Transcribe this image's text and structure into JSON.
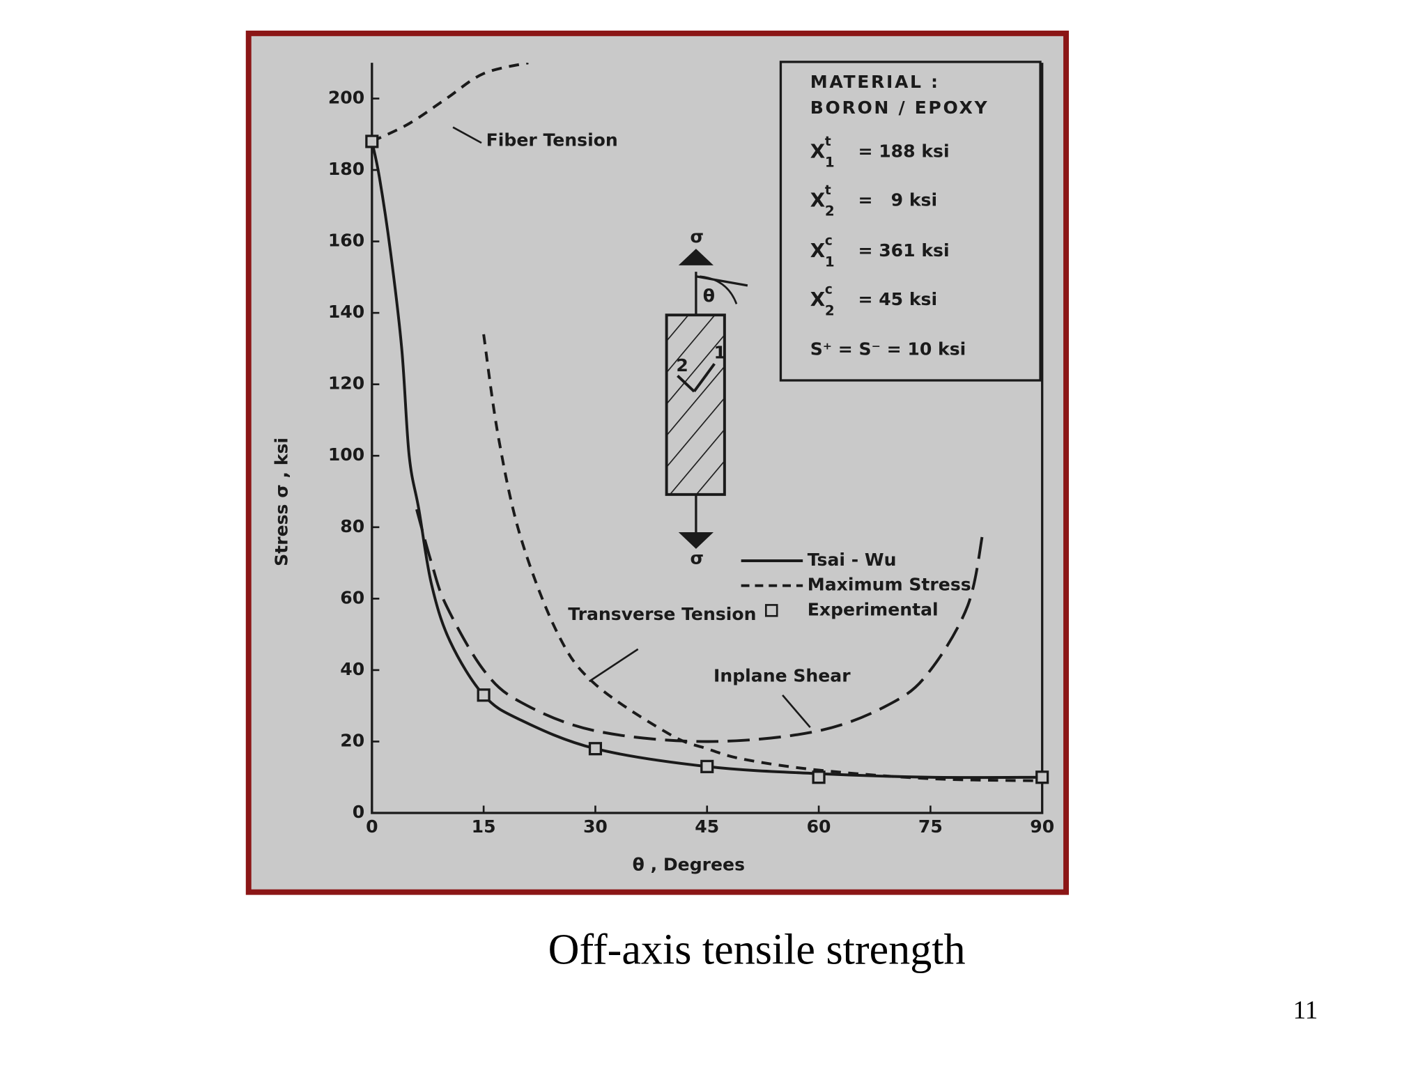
{
  "slide": {
    "title": "Off-axis tensile strength",
    "page_number": "11"
  },
  "chart_data": {
    "type": "line",
    "x_label": "θ , Degrees",
    "y_label": "Stress σ , ksi",
    "xlim": [
      0,
      90
    ],
    "xticks": [
      0,
      15,
      30,
      45,
      60,
      75,
      90
    ],
    "ylim": [
      0,
      210
    ],
    "yticks": [
      0,
      20,
      40,
      60,
      80,
      100,
      120,
      140,
      160,
      180,
      200
    ],
    "grid": false,
    "series": [
      {
        "legend_entry": 0,
        "style": "solid",
        "color": "#1a1a1a",
        "x": [
          0,
          1,
          2.5,
          4,
          5,
          6.3,
          8,
          10.5,
          15,
          20,
          30,
          45,
          60,
          75,
          90
        ],
        "values": [
          188,
          178,
          157,
          130,
          100,
          85,
          64,
          48,
          33,
          26,
          18,
          13,
          11,
          10,
          10
        ]
      },
      {
        "name": "Fiber Tension",
        "legend_entry": 1,
        "style": "dashed",
        "color": "#1a1a1a",
        "x": [
          0,
          5,
          10,
          15,
          21
        ],
        "values": [
          188,
          193,
          200,
          207,
          210
        ]
      },
      {
        "name": "Transverse Tension",
        "legend_entry": 1,
        "style": "dashed",
        "color": "#1a1a1a",
        "x": [
          15,
          17,
          20,
          25,
          30,
          40,
          45,
          50,
          60,
          75,
          90
        ],
        "values": [
          134,
          105,
          77,
          50,
          36,
          22,
          18,
          15,
          12,
          9.6,
          9
        ]
      },
      {
        "name": "Inplane Shear",
        "legend_entry": 1,
        "style": "long-dashed",
        "color": "#1a1a1a",
        "x": [
          6,
          8,
          10,
          15,
          20,
          30,
          45,
          60,
          70,
          75,
          80,
          82
        ],
        "values": [
          85,
          70,
          58,
          40,
          31,
          23,
          20,
          23,
          31,
          40,
          58,
          78
        ]
      },
      {
        "legend_entry": 2,
        "style": "marker",
        "color": "#1a1a1a",
        "x": [
          0,
          15,
          30,
          45,
          60,
          90
        ],
        "values": [
          188,
          33,
          18,
          13,
          10,
          10
        ]
      }
    ],
    "legend": [
      {
        "label": "Tsai - Wu",
        "style": "solid"
      },
      {
        "label": "Maximum Stress",
        "style": "dashed"
      },
      {
        "label": "Experimental",
        "style": "marker"
      }
    ],
    "material_box": {
      "heading": "MATERIAL :",
      "material": "BORON / EPOXY",
      "properties": [
        {
          "symbol": "X",
          "superscript": "t",
          "subscript": "1",
          "value": "= 188 ksi"
        },
        {
          "symbol": "X",
          "superscript": "t",
          "subscript": "2",
          "value": "=   9 ksi"
        },
        {
          "symbol": "X",
          "superscript": "c",
          "subscript": "1",
          "value": "= 361 ksi"
        },
        {
          "symbol": "X",
          "superscript": "c",
          "subscript": "2",
          "value": "= 45 ksi"
        }
      ],
      "shear": "S⁺ = S⁻ = 10 ksi"
    },
    "specimen": {
      "stress_top": "σ",
      "stress_bottom": "σ",
      "angle": "θ",
      "axis_1": "1",
      "axis_2": "2"
    }
  }
}
